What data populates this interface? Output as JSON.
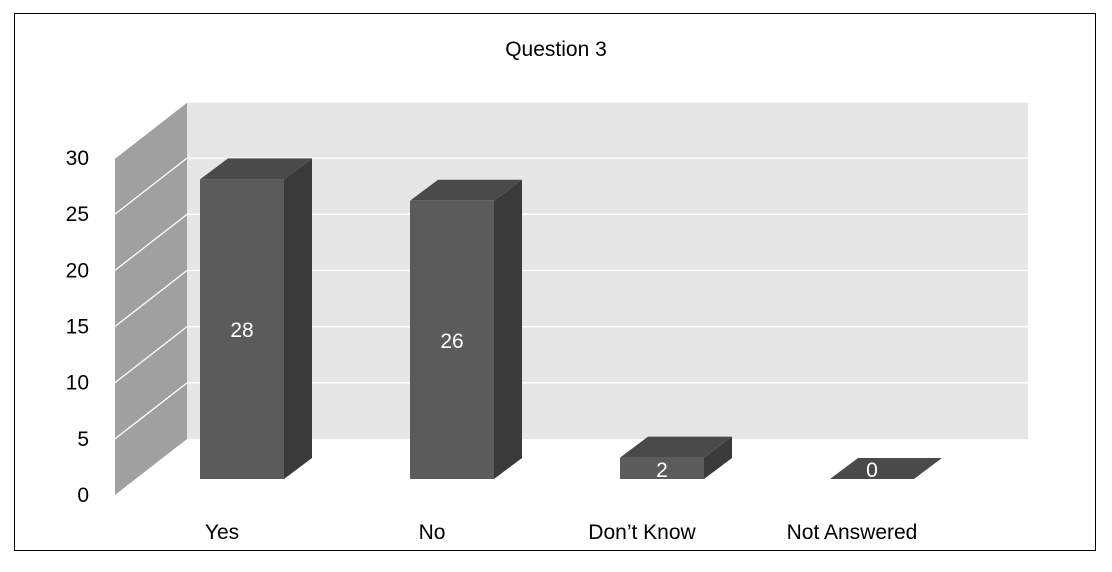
{
  "chart_data": {
    "type": "bar",
    "style": "3d-column",
    "title": "Question 3",
    "xlabel": "",
    "ylabel": "",
    "categories": [
      "Yes",
      "No",
      "Don’t Know",
      "Not Answered"
    ],
    "values": [
      28,
      26,
      2,
      0
    ],
    "data_labels": [
      "28",
      "26",
      "2",
      "0"
    ],
    "ylim": [
      0,
      30
    ],
    "yticks": [
      "0",
      "5",
      "10",
      "15",
      "20",
      "25",
      "30"
    ],
    "grid": true,
    "legend": "none",
    "colors": {
      "bar_front": "#5b5b5b",
      "bar_side": "#3a3a3a",
      "bar_top": "#4a4a4a",
      "back_wall": "#e6e6e6",
      "side_wall": "#a0a0a0",
      "gridline": "#ffffff",
      "label_on_bar": "#ffffff"
    }
  }
}
